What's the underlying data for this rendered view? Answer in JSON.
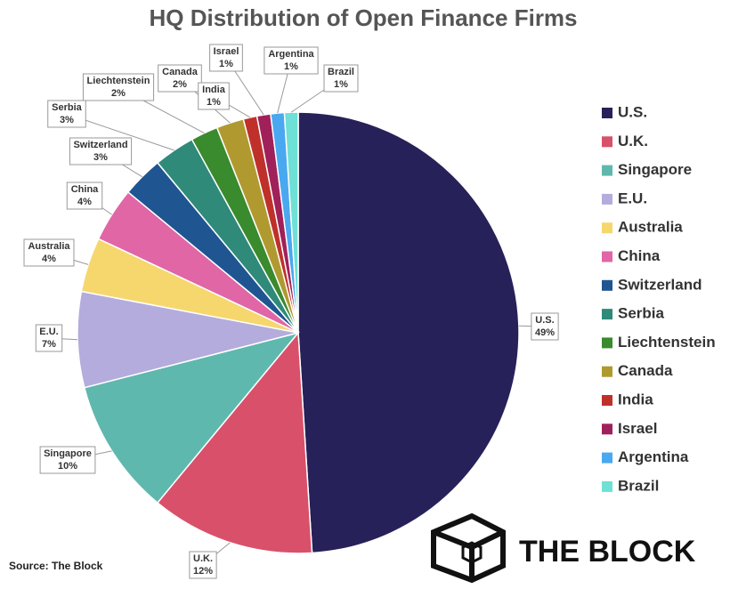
{
  "chart_data": {
    "type": "pie",
    "title": "HQ Distribution of Open Finance Firms",
    "categories": [
      "U.S.",
      "U.K.",
      "Singapore",
      "E.U.",
      "Australia",
      "China",
      "Switzerland",
      "Serbia",
      "Liechtenstein",
      "Canada",
      "India",
      "Israel",
      "Argentina",
      "Brazil"
    ],
    "values": [
      49,
      12,
      10,
      7,
      4,
      4,
      3,
      3,
      2,
      2,
      1,
      1,
      1,
      1
    ],
    "value_labels": [
      "49%",
      "12%",
      "10%",
      "7%",
      "4%",
      "4%",
      "3%",
      "3%",
      "2%",
      "2%",
      "1%",
      "1%",
      "1%",
      "1%"
    ],
    "colors": [
      "#262158",
      "#d9506a",
      "#5fb8ae",
      "#b4acdc",
      "#f5d76e",
      "#e066a6",
      "#1f5591",
      "#2f8a7a",
      "#3a8a2e",
      "#b09a30",
      "#c0302a",
      "#a0205a",
      "#4aa8f0",
      "#6ee0d6"
    ],
    "legend": "right",
    "source": "Source: The Block",
    "logo": "THE BLOCK"
  }
}
